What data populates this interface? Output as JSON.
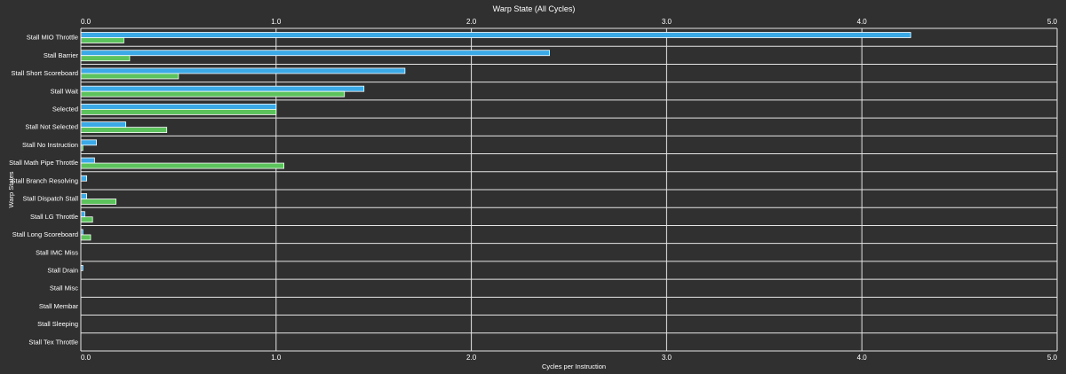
{
  "chart_data": {
    "type": "bar",
    "orientation": "horizontal",
    "title": "Warp State (All Cycles)",
    "xlabel": "Cycles per Instruction",
    "ylabel": "Warp States",
    "xlim": [
      0,
      5
    ],
    "xticks": [
      "0.0",
      "1.0",
      "2.0",
      "3.0",
      "4.0",
      "5.0"
    ],
    "grid": true,
    "categories": [
      "Stall MIO Throttle",
      "Stall Barrier",
      "Stall Short Scoreboard",
      "Stall Wait",
      "Selected",
      "Stall Not Selected",
      "Stall No Instruction",
      "Stall Math Pipe Throttle",
      "Stall Branch Resolving",
      "Stall Dispatch Stall",
      "Stall LG Throttle",
      "Stall Long Scoreboard",
      "Stall IMC Miss",
      "Stall Drain",
      "Stall Misc",
      "Stall Membar",
      "Stall Sleeping",
      "Stall Tex Throttle"
    ],
    "series": [
      {
        "color": "#3ba9e6",
        "values": [
          4.25,
          2.4,
          1.66,
          1.45,
          1.0,
          0.23,
          0.08,
          0.07,
          0.03,
          0.03,
          0.02,
          0.01,
          0.0,
          0.01,
          0.0,
          0.0,
          0.0,
          0.0
        ]
      },
      {
        "color": "#5cc35c",
        "values": [
          0.22,
          0.25,
          0.5,
          1.35,
          1.0,
          0.44,
          0.01,
          1.04,
          0.0,
          0.18,
          0.06,
          0.05,
          0.0,
          0.0,
          0.0,
          0.0,
          0.0,
          0.0
        ]
      }
    ]
  }
}
